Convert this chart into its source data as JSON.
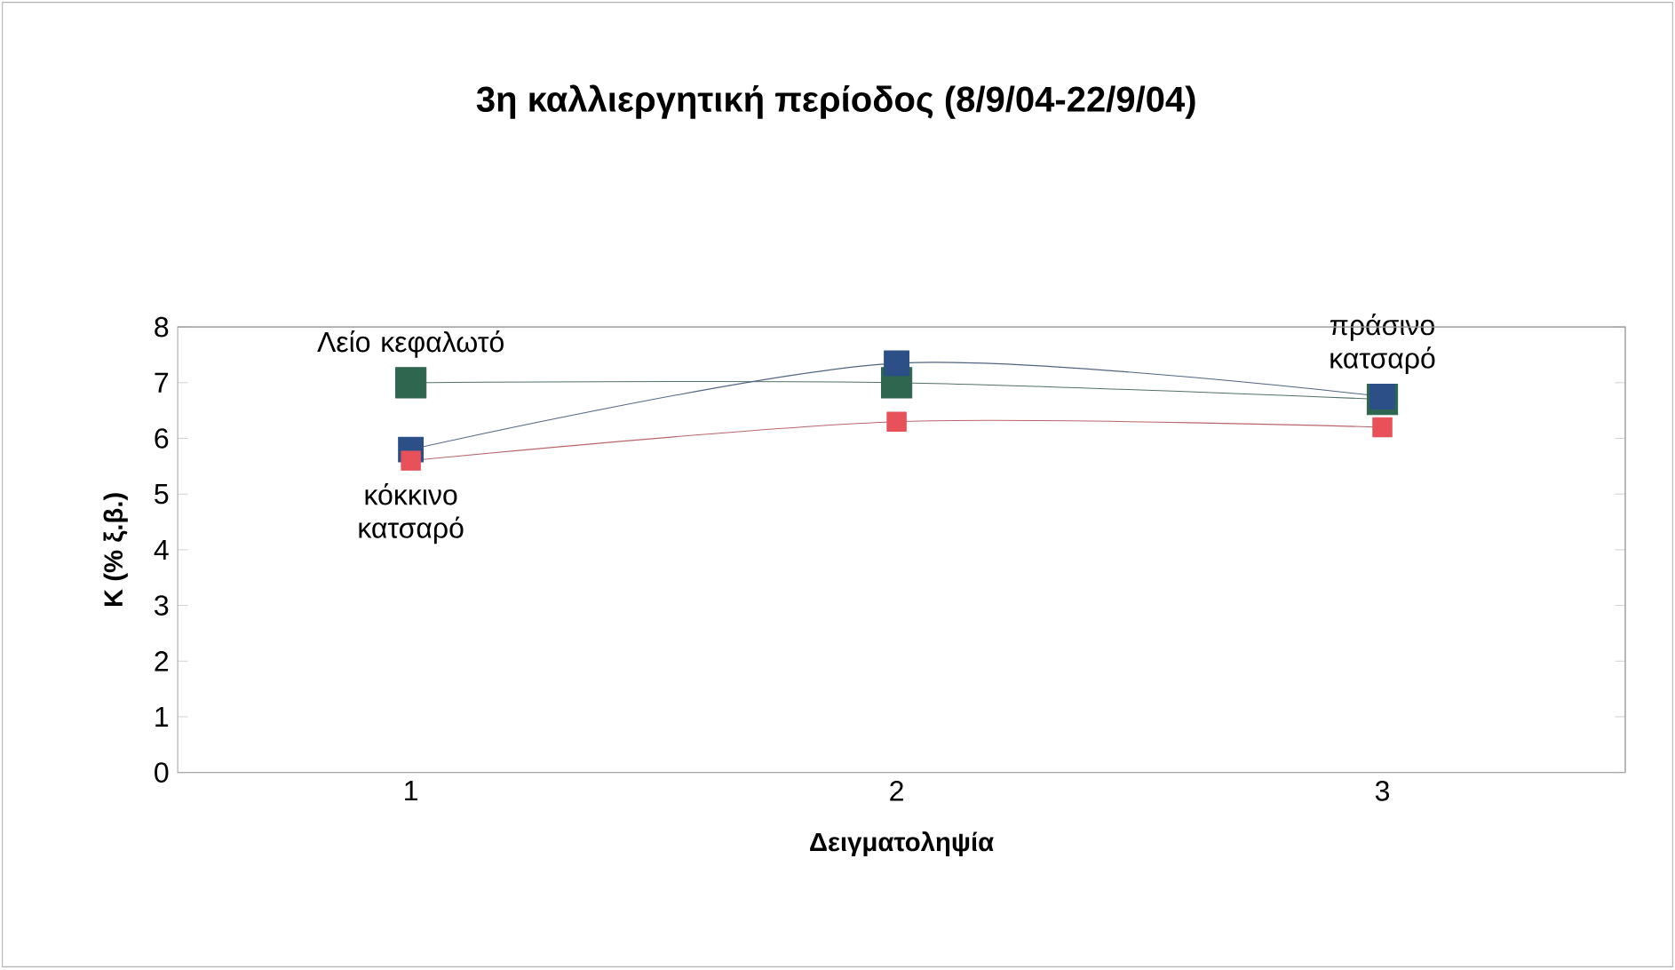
{
  "chart_data": {
    "type": "line",
    "title": "3η καλλιεργητική περίοδος (8/9/04-22/9/04)",
    "xlabel": "Δειγματοληψία",
    "ylabel": "K (% ξ.β.)",
    "categories": [
      "1",
      "2",
      "3"
    ],
    "series": [
      {
        "name": "Λείο κεφαλωτό",
        "color": "#2e6650",
        "values": [
          7.0,
          7.0,
          6.7
        ]
      },
      {
        "name": "πράσινο κατσαρό",
        "color": "#2b4f86",
        "values": [
          5.8,
          7.35,
          6.75
        ]
      },
      {
        "name": "κόκκινο κατσαρό",
        "color": "#e8505a",
        "values": [
          5.6,
          6.3,
          6.2
        ]
      }
    ],
    "ylim": [
      0,
      8
    ],
    "yticks": [
      0,
      1,
      2,
      3,
      4,
      5,
      6,
      7,
      8
    ],
    "marker": "square",
    "line_style": "solid",
    "grid": false,
    "legend": false
  }
}
